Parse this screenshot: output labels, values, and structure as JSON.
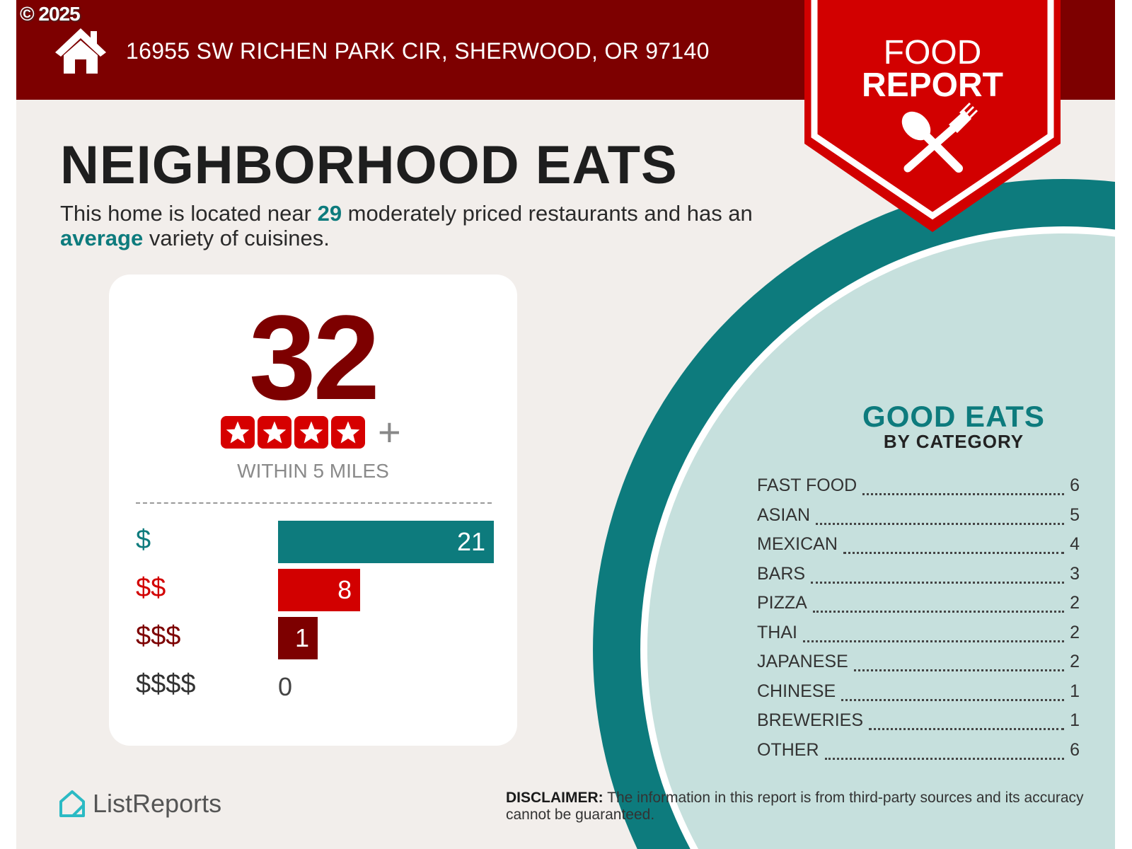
{
  "header": {
    "copyright": "© 2025",
    "address": "16955 SW RICHEN PARK CIR, SHERWOOD, OR 97140",
    "icon": "house-icon"
  },
  "banner": {
    "line1": "FOOD",
    "line2": "REPORT",
    "icon": "spoon-fork-icon"
  },
  "title": "NEIGHBORHOOD EATS",
  "intro": {
    "part1": "This home is located near ",
    "count": "29",
    "part2": " moderately priced restaurants and has an ",
    "variety": "average",
    "part3": " variety of cuisines."
  },
  "card": {
    "total": "32",
    "stars": 4,
    "plus": "+",
    "within": "WITHIN 5 MILES",
    "price_tiers": [
      {
        "label": "$",
        "value": 21,
        "color": "#0d7b7d"
      },
      {
        "label": "$$",
        "value": 8,
        "color": "#d20000"
      },
      {
        "label": "$$$",
        "value": 1,
        "color": "#7d0000"
      },
      {
        "label": "$$$$",
        "value": 0,
        "color": "#333333"
      }
    ]
  },
  "good_eats": {
    "title": "GOOD EATS",
    "subtitle": "BY CATEGORY",
    "categories": [
      {
        "name": "FAST FOOD",
        "count": "6"
      },
      {
        "name": "ASIAN",
        "count": "5"
      },
      {
        "name": "MEXICAN",
        "count": "4"
      },
      {
        "name": "BARS",
        "count": "3"
      },
      {
        "name": "PIZZA",
        "count": "2"
      },
      {
        "name": "THAI",
        "count": "2"
      },
      {
        "name": "JAPANESE",
        "count": "2"
      },
      {
        "name": "CHINESE",
        "count": "1"
      },
      {
        "name": "BREWERIES",
        "count": "1"
      },
      {
        "name": "OTHER",
        "count": "6"
      }
    ]
  },
  "footer": {
    "logo": "ListReports",
    "disclaimer_label": "DISCLAIMER:",
    "disclaimer_text": " The information in this report is from third-party sources and its accuracy cannot be guaranteed."
  },
  "colors": {
    "maroon": "#7d0000",
    "red": "#d20000",
    "teal": "#0d7b7d",
    "light_teal": "#c6e0dd",
    "background": "#f2eeeb"
  }
}
